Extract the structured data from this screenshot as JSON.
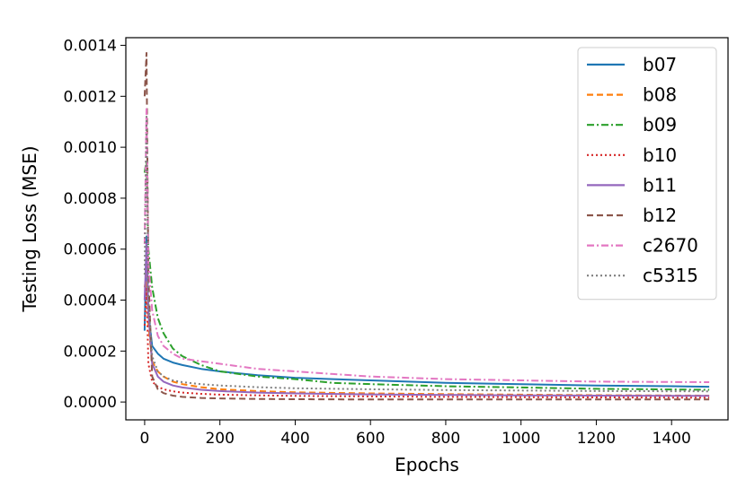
{
  "chart_data": {
    "type": "line",
    "title": "",
    "xlabel": "Epochs",
    "ylabel": "Testing Loss (MSE)",
    "xlim": [
      -50,
      1550
    ],
    "ylim": [
      -7e-05,
      0.00143
    ],
    "xticks": [
      0,
      200,
      400,
      600,
      800,
      1000,
      1200,
      1400
    ],
    "xtick_labels": [
      "0",
      "200",
      "400",
      "600",
      "800",
      "1000",
      "1200",
      "1400"
    ],
    "yticks": [
      0.0,
      0.0002,
      0.0004,
      0.0006,
      0.0008,
      0.001,
      0.0012,
      0.0014
    ],
    "ytick_labels": [
      "0.0000",
      "0.0002",
      "0.0004",
      "0.0006",
      "0.0008",
      "0.0010",
      "0.0012",
      "0.0014"
    ],
    "grid": false,
    "legend_position": "top-right",
    "series": [
      {
        "name": "b07",
        "color": "#1f77b4",
        "dash": "solid",
        "x": [
          0,
          5,
          10,
          20,
          35,
          50,
          75,
          100,
          150,
          200,
          300,
          400,
          500,
          600,
          800,
          1000,
          1200,
          1400,
          1500
        ],
        "y": [
          0.00028,
          0.00065,
          0.00035,
          0.00022,
          0.00019,
          0.00017,
          0.000155,
          0.000145,
          0.00013,
          0.00012,
          0.000105,
          9.5e-05,
          9e-05,
          8.5e-05,
          7.5e-05,
          7e-05,
          6.5e-05,
          6.2e-05,
          6e-05
        ]
      },
      {
        "name": "b08",
        "color": "#ff7f0e",
        "dash": "dashed",
        "x": [
          0,
          5,
          10,
          20,
          35,
          50,
          75,
          100,
          150,
          200,
          300,
          400,
          600,
          800,
          1000,
          1200,
          1500
        ],
        "y": [
          0.00045,
          0.0005,
          0.0003,
          0.00016,
          0.00012,
          0.0001,
          8e-05,
          7e-05,
          5.8e-05,
          5e-05,
          4.3e-05,
          3.8e-05,
          3.4e-05,
          3.1e-05,
          2.9e-05,
          2.7e-05,
          2.5e-05
        ]
      },
      {
        "name": "b09",
        "color": "#2ca02c",
        "dash": "dashdot",
        "x": [
          0,
          5,
          10,
          20,
          35,
          50,
          75,
          100,
          150,
          200,
          300,
          400,
          500,
          600,
          800,
          1000,
          1200,
          1500
        ],
        "y": [
          0.0009,
          0.00095,
          0.0006,
          0.00045,
          0.00033,
          0.00027,
          0.00021,
          0.00018,
          0.000145,
          0.00012,
          0.0001,
          9e-05,
          7.5e-05,
          7e-05,
          6.2e-05,
          5.7e-05,
          5.2e-05,
          4.8e-05
        ]
      },
      {
        "name": "b10",
        "color": "#d62728",
        "dash": "dotted",
        "x": [
          0,
          5,
          10,
          20,
          35,
          50,
          75,
          100,
          150,
          200,
          300,
          400,
          600,
          800,
          1000,
          1200,
          1500
        ],
        "y": [
          0.0003,
          0.00045,
          0.00015,
          8e-05,
          6e-05,
          5e-05,
          4.2e-05,
          3.7e-05,
          3.2e-05,
          2.9e-05,
          2.6e-05,
          2.4e-05,
          2.2e-05,
          2e-05,
          1.9e-05,
          1.8e-05,
          1.7e-05
        ]
      },
      {
        "name": "b11",
        "color": "#9467bd",
        "dash": "solid",
        "x": [
          0,
          5,
          10,
          20,
          35,
          50,
          75,
          100,
          150,
          200,
          300,
          400,
          600,
          800,
          1000,
          1200,
          1500
        ],
        "y": [
          0.0004,
          0.00062,
          0.00035,
          0.00015,
          0.0001,
          8e-05,
          6.5e-05,
          5.7e-05,
          4.8e-05,
          4.3e-05,
          3.7e-05,
          3.4e-05,
          3e-05,
          2.8e-05,
          2.6e-05,
          2.5e-05,
          2.4e-05
        ]
      },
      {
        "name": "b12",
        "color": "#8c564b",
        "dash": "dashed",
        "x": [
          0,
          5,
          10,
          20,
          35,
          50,
          75,
          100,
          150,
          200,
          300,
          400,
          600,
          800,
          1000,
          1200,
          1500
        ],
        "y": [
          0.0012,
          0.00137,
          0.0005,
          0.0001,
          5e-05,
          3.5e-05,
          2.5e-05,
          2e-05,
          1.6e-05,
          1.4e-05,
          1.2e-05,
          1.1e-05,
          1e-05,
          1e-05,
          1e-05,
          1e-05,
          1e-05
        ]
      },
      {
        "name": "c2670",
        "color": "#e377c2",
        "dash": "dashdot",
        "x": [
          0,
          5,
          10,
          20,
          35,
          50,
          75,
          100,
          150,
          200,
          300,
          400,
          500,
          600,
          800,
          1000,
          1200,
          1500
        ],
        "y": [
          0.00062,
          0.00115,
          0.00055,
          0.00036,
          0.00026,
          0.00022,
          0.00019,
          0.00017,
          0.00016,
          0.00015,
          0.00013,
          0.00012,
          0.00011,
          0.0001,
          9e-05,
          8.5e-05,
          8e-05,
          7.8e-05
        ]
      },
      {
        "name": "c5315",
        "color": "#7f7f7f",
        "dash": "dotted",
        "x": [
          0,
          5,
          10,
          20,
          35,
          50,
          75,
          100,
          150,
          200,
          300,
          400,
          600,
          800,
          1000,
          1200,
          1500
        ],
        "y": [
          0.0005,
          0.00112,
          0.0004,
          0.00018,
          0.00012,
          0.0001,
          8.5e-05,
          7.8e-05,
          7e-05,
          6.5e-05,
          5.8e-05,
          5.4e-05,
          5e-05,
          4.7e-05,
          4.5e-05,
          4.3e-05,
          4.2e-05
        ]
      }
    ]
  }
}
